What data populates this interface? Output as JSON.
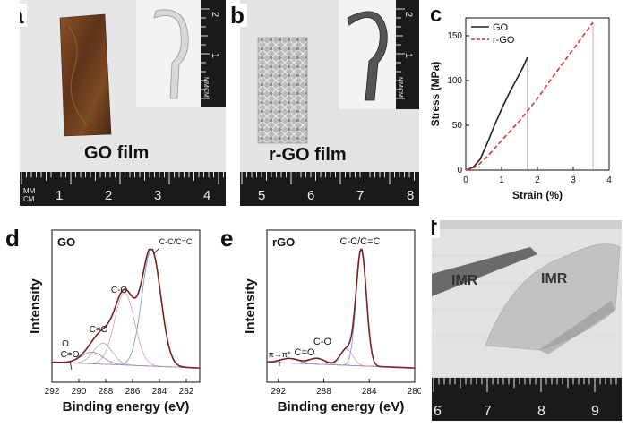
{
  "panels": {
    "a": {
      "letter": "a",
      "film_label": "GO film",
      "inset_ruler_labels": [
        "2",
        "1"
      ],
      "inset_unit_top": "MM",
      "inset_unit_bottom": "CM",
      "ruler_unit_top": "MM",
      "ruler_unit_bottom": "CM",
      "ruler_numbers": [
        "1",
        "2",
        "3",
        "4"
      ]
    },
    "b": {
      "letter": "b",
      "film_label": "r-GO film",
      "inset_ruler_labels": [
        "2",
        "1"
      ],
      "inset_unit_top": "MM",
      "inset_unit_bottom": "CM",
      "ruler_numbers": [
        "5",
        "6",
        "7",
        "8"
      ]
    },
    "c": {
      "letter": "c"
    },
    "d": {
      "letter": "d"
    },
    "e": {
      "letter": "e"
    },
    "f": {
      "letter": "f",
      "ruler_numbers": [
        "6",
        "7",
        "8",
        "9"
      ],
      "logo_text": "IMR",
      "logo_text_2": "IMR"
    }
  },
  "colors": {
    "go": "#222222",
    "rgo": "#e03030",
    "sum": "#7a1f1f",
    "fit_blue": "#6fa3c7",
    "fit_pink": "#e8a0b8",
    "fit_green": "#9bc49b",
    "fit_purple": "#9b86c4",
    "ruler_bg": "#1a1a1a",
    "go_film": "#6b3d1e"
  },
  "chart_data": [
    {
      "id": "c",
      "type": "line",
      "title": "",
      "xlabel": "Strain (%)",
      "ylabel": "Stress (MPa)",
      "xlim": [
        0,
        4
      ],
      "ylim": [
        0,
        170
      ],
      "xticks": [
        "0",
        "1",
        "2",
        "3",
        "4"
      ],
      "yticks": [
        "0",
        "50",
        "100",
        "150"
      ],
      "legend_position": "top-left",
      "series": [
        {
          "name": "GO",
          "style": "solid",
          "x": [
            0,
            0.2,
            0.4,
            0.6,
            0.8,
            1.0,
            1.2,
            1.4,
            1.6,
            1.72
          ],
          "y": [
            0,
            3,
            12,
            30,
            50,
            68,
            85,
            100,
            115,
            126
          ]
        },
        {
          "name": "r-GO",
          "style": "dashed",
          "x": [
            0,
            0.3,
            0.6,
            1.0,
            1.5,
            2.0,
            2.5,
            3.0,
            3.55
          ],
          "y": [
            0,
            4,
            15,
            33,
            55,
            80,
            108,
            135,
            165
          ]
        }
      ],
      "break_lines_x": [
        1.72,
        3.55
      ]
    },
    {
      "id": "d",
      "type": "line",
      "title": "",
      "panel_label": "GO",
      "xlabel": "Binding energy (eV)",
      "ylabel": "Intensity",
      "xlim": [
        292,
        281
      ],
      "x_reversed": true,
      "xticks": [
        "292",
        "290",
        "288",
        "286",
        "284",
        "282"
      ],
      "annotations": [
        "C-C/C=C",
        "C-O",
        "C=O",
        "O",
        "C=O"
      ],
      "peaks": [
        {
          "label": "C-C/C=C",
          "center": 284.6,
          "height": 1.0
        },
        {
          "label": "C-O",
          "center": 286.6,
          "height": 0.62
        },
        {
          "label": "C=O",
          "center": 288.2,
          "height": 0.18
        },
        {
          "label": "O-C=O",
          "center": 289.0,
          "height": 0.1
        }
      ]
    },
    {
      "id": "e",
      "type": "line",
      "title": "",
      "panel_label": "rGO",
      "xlabel": "Binding energy (eV)",
      "ylabel": "Intensity",
      "xlim": [
        293,
        280
      ],
      "x_reversed": true,
      "xticks": [
        "292",
        "288",
        "284",
        "280"
      ],
      "annotations": [
        "C-C/C=C",
        "C-O",
        "C=O",
        "π→π*"
      ],
      "peaks": [
        {
          "label": "C-C/C=C",
          "center": 284.7,
          "height": 1.0
        },
        {
          "label": "C-O",
          "center": 286.0,
          "height": 0.14
        },
        {
          "label": "C=O",
          "center": 288.6,
          "height": 0.05
        },
        {
          "label": "π→π*",
          "center": 291.0,
          "height": 0.04
        }
      ]
    }
  ]
}
